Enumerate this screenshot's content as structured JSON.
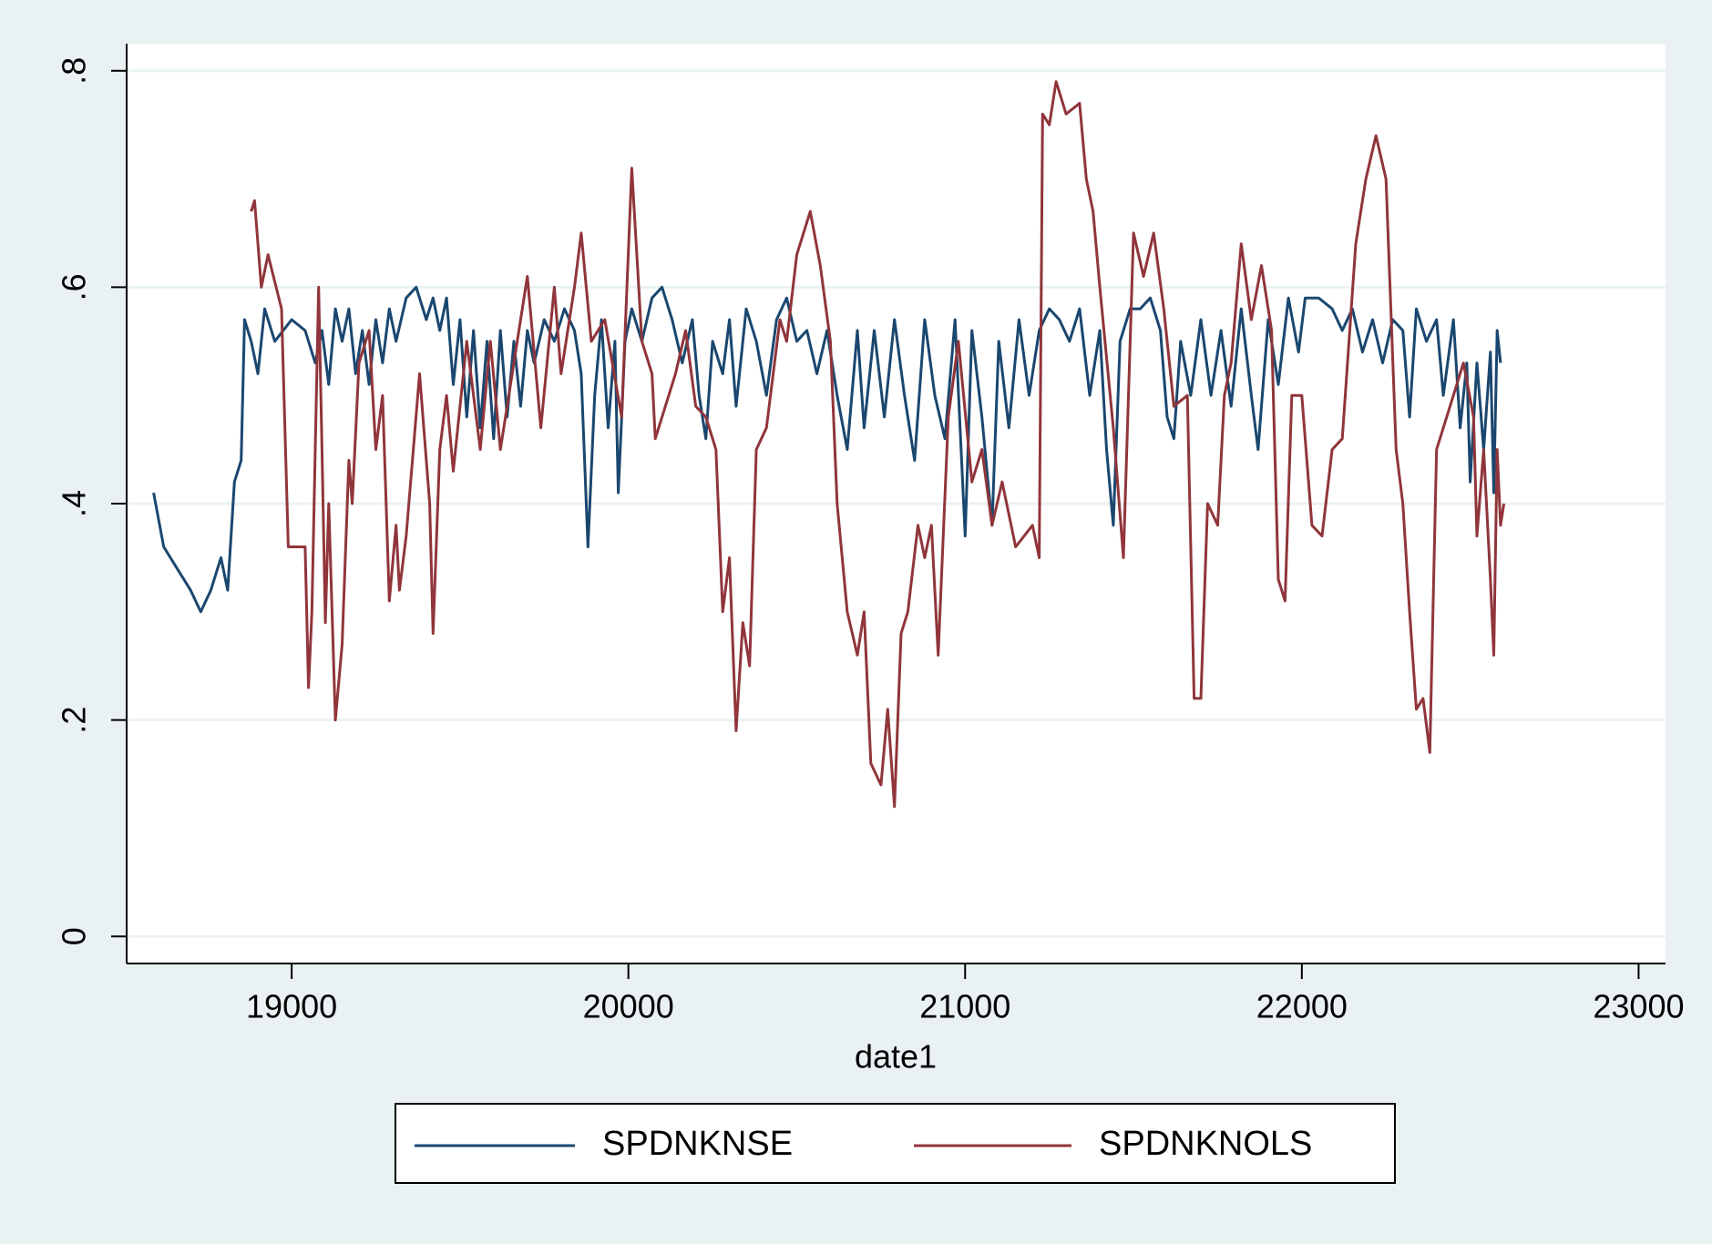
{
  "chart_data": {
    "type": "line",
    "xlabel": "date1",
    "xlim": [
      18510,
      23080
    ],
    "xticks": [
      19000,
      20000,
      21000,
      22000,
      23000
    ],
    "ylim": [
      -0.025,
      0.825
    ],
    "yticks": [
      0,
      {
        "value": 0.2,
        "label": ".2"
      },
      {
        "value": 0.4,
        "label": ".4"
      },
      {
        "value": 0.6,
        "label": ".6"
      },
      {
        "value": 0.8,
        "label": ".8"
      }
    ],
    "grid": true,
    "legend": "bottom",
    "series": [
      {
        "name": "SPDNKNSE",
        "color": "#1a476f",
        "x": [
          18590,
          18620,
          18660,
          18700,
          18730,
          18760,
          18790,
          18810,
          18830,
          18850,
          18860,
          18880,
          18900,
          18920,
          18950,
          19000,
          19040,
          19070,
          19090,
          19110,
          19130,
          19150,
          19170,
          19190,
          19210,
          19230,
          19250,
          19270,
          19290,
          19310,
          19340,
          19370,
          19400,
          19420,
          19440,
          19460,
          19480,
          19500,
          19520,
          19540,
          19560,
          19580,
          19600,
          19620,
          19640,
          19660,
          19680,
          19700,
          19720,
          19750,
          19780,
          19810,
          19840,
          19860,
          19880,
          19900,
          19920,
          19940,
          19960,
          19970,
          19990,
          20010,
          20040,
          20070,
          20100,
          20130,
          20160,
          20190,
          20210,
          20230,
          20250,
          20280,
          20300,
          20320,
          20350,
          20380,
          20410,
          20440,
          20470,
          20500,
          20530,
          20560,
          20590,
          20620,
          20650,
          20680,
          20700,
          20730,
          20760,
          20790,
          20820,
          20850,
          20880,
          20910,
          20940,
          20970,
          21000,
          21020,
          21050,
          21080,
          21100,
          21130,
          21160,
          21190,
          21220,
          21250,
          21280,
          21310,
          21340,
          21370,
          21400,
          21420,
          21440,
          21460,
          21490,
          21520,
          21550,
          21580,
          21600,
          21620,
          21640,
          21670,
          21700,
          21730,
          21760,
          21790,
          21820,
          21850,
          21870,
          21900,
          21930,
          21960,
          21990,
          22010,
          22050,
          22090,
          22120,
          22150,
          22180,
          22210,
          22240,
          22270,
          22300,
          22320,
          22340,
          22370,
          22400,
          22420,
          22450,
          22470,
          22490,
          22500,
          22520,
          22540,
          22560,
          22570,
          22580,
          22590
        ],
        "values": [
          0.41,
          0.36,
          0.34,
          0.32,
          0.3,
          0.32,
          0.35,
          0.32,
          0.42,
          0.44,
          0.57,
          0.55,
          0.52,
          0.58,
          0.55,
          0.57,
          0.56,
          0.53,
          0.56,
          0.51,
          0.58,
          0.55,
          0.58,
          0.52,
          0.56,
          0.51,
          0.57,
          0.53,
          0.58,
          0.55,
          0.59,
          0.6,
          0.57,
          0.59,
          0.56,
          0.59,
          0.51,
          0.57,
          0.48,
          0.56,
          0.47,
          0.55,
          0.46,
          0.56,
          0.48,
          0.55,
          0.49,
          0.56,
          0.53,
          0.57,
          0.55,
          0.58,
          0.56,
          0.52,
          0.36,
          0.5,
          0.57,
          0.47,
          0.55,
          0.41,
          0.55,
          0.58,
          0.55,
          0.59,
          0.6,
          0.57,
          0.53,
          0.57,
          0.5,
          0.46,
          0.55,
          0.52,
          0.57,
          0.49,
          0.58,
          0.55,
          0.5,
          0.57,
          0.59,
          0.55,
          0.56,
          0.52,
          0.56,
          0.5,
          0.45,
          0.56,
          0.47,
          0.56,
          0.48,
          0.57,
          0.5,
          0.44,
          0.57,
          0.5,
          0.46,
          0.57,
          0.37,
          0.56,
          0.48,
          0.38,
          0.55,
          0.47,
          0.57,
          0.5,
          0.56,
          0.58,
          0.57,
          0.55,
          0.58,
          0.5,
          0.56,
          0.45,
          0.38,
          0.55,
          0.58,
          0.58,
          0.59,
          0.56,
          0.48,
          0.46,
          0.55,
          0.5,
          0.57,
          0.5,
          0.56,
          0.49,
          0.58,
          0.5,
          0.45,
          0.57,
          0.51,
          0.59,
          0.54,
          0.59,
          0.59,
          0.58,
          0.56,
          0.58,
          0.54,
          0.57,
          0.53,
          0.57,
          0.56,
          0.48,
          0.58,
          0.55,
          0.57,
          0.5,
          0.57,
          0.47,
          0.53,
          0.42,
          0.53,
          0.45,
          0.54,
          0.41,
          0.56,
          0.53
        ]
      },
      {
        "name": "SPDNKNOLS",
        "color": "#90353b",
        "x": [
          18880,
          18890,
          18910,
          18930,
          18970,
          18990,
          19040,
          19050,
          19060,
          19080,
          19090,
          19100,
          19110,
          19130,
          19150,
          19170,
          19180,
          19200,
          19230,
          19250,
          19270,
          19290,
          19310,
          19320,
          19340,
          19380,
          19410,
          19420,
          19440,
          19460,
          19480,
          19520,
          19560,
          19590,
          19620,
          19680,
          19700,
          19740,
          19780,
          19800,
          19840,
          19860,
          19890,
          19930,
          19980,
          20010,
          20040,
          20070,
          20080,
          20140,
          20170,
          20200,
          20230,
          20260,
          20280,
          20300,
          20320,
          20340,
          20360,
          20380,
          20410,
          20450,
          20470,
          20500,
          20540,
          20570,
          20600,
          20620,
          20650,
          20680,
          20700,
          20720,
          20750,
          20770,
          20790,
          20810,
          20830,
          20860,
          20880,
          20900,
          20920,
          20950,
          20980,
          21020,
          21050,
          21080,
          21110,
          21150,
          21200,
          21220,
          21230,
          21250,
          21270,
          21300,
          21340,
          21360,
          21380,
          21400,
          21440,
          21470,
          21500,
          21530,
          21560,
          21590,
          21620,
          21660,
          21680,
          21700,
          21720,
          21750,
          21770,
          21790,
          21820,
          21850,
          21880,
          21910,
          21930,
          21950,
          21970,
          22000,
          22030,
          22060,
          22090,
          22120,
          22160,
          22190,
          22220,
          22250,
          22280,
          22300,
          22320,
          22340,
          22360,
          22380,
          22400,
          22450,
          22480,
          22510,
          22520,
          22540,
          22560,
          22570,
          22580,
          22590,
          22600
        ],
        "values": [
          0.67,
          0.68,
          0.6,
          0.63,
          0.58,
          0.36,
          0.36,
          0.23,
          0.3,
          0.6,
          0.45,
          0.29,
          0.4,
          0.2,
          0.27,
          0.44,
          0.4,
          0.53,
          0.56,
          0.45,
          0.5,
          0.31,
          0.38,
          0.32,
          0.37,
          0.52,
          0.4,
          0.28,
          0.45,
          0.5,
          0.43,
          0.55,
          0.45,
          0.55,
          0.45,
          0.57,
          0.61,
          0.47,
          0.6,
          0.52,
          0.6,
          0.65,
          0.55,
          0.57,
          0.48,
          0.71,
          0.55,
          0.52,
          0.46,
          0.52,
          0.56,
          0.49,
          0.48,
          0.45,
          0.3,
          0.35,
          0.19,
          0.29,
          0.25,
          0.45,
          0.47,
          0.57,
          0.55,
          0.63,
          0.67,
          0.62,
          0.55,
          0.4,
          0.3,
          0.26,
          0.3,
          0.16,
          0.14,
          0.21,
          0.12,
          0.28,
          0.3,
          0.38,
          0.35,
          0.38,
          0.26,
          0.48,
          0.55,
          0.42,
          0.45,
          0.38,
          0.42,
          0.36,
          0.38,
          0.35,
          0.76,
          0.75,
          0.79,
          0.76,
          0.77,
          0.7,
          0.67,
          0.6,
          0.47,
          0.35,
          0.65,
          0.61,
          0.65,
          0.58,
          0.49,
          0.5,
          0.22,
          0.22,
          0.4,
          0.38,
          0.5,
          0.53,
          0.64,
          0.57,
          0.62,
          0.56,
          0.33,
          0.31,
          0.5,
          0.5,
          0.38,
          0.37,
          0.45,
          0.46,
          0.64,
          0.7,
          0.74,
          0.7,
          0.45,
          0.4,
          0.3,
          0.21,
          0.22,
          0.17,
          0.45,
          0.5,
          0.53,
          0.48,
          0.37,
          0.45,
          0.33,
          0.26,
          0.45,
          0.38,
          0.4
        ]
      }
    ]
  }
}
